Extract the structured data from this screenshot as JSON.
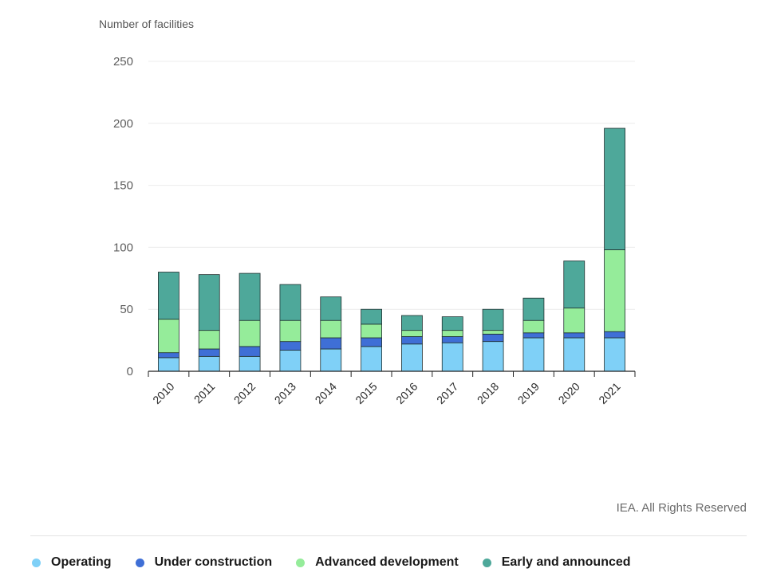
{
  "credit": "IEA. All Rights Reserved",
  "colors": {
    "Operating": "#7fd0f7",
    "Under construction": "#3f6fd6",
    "Advanced development": "#95ec9a",
    "Early and announced": "#4ea89a"
  },
  "chart_data": {
    "type": "bar",
    "stacked": true,
    "title": "",
    "xlabel": "",
    "ylabel": "Number of facilities",
    "ylim": [
      0,
      250
    ],
    "yticks": [
      0,
      50,
      100,
      150,
      200,
      250
    ],
    "grid": true,
    "legend_position": "bottom",
    "categories": [
      "2010",
      "2011",
      "2012",
      "2013",
      "2014",
      "2015",
      "2016",
      "2017",
      "2018",
      "2019",
      "2020",
      "2021"
    ],
    "series": [
      {
        "name": "Operating",
        "values": [
          11,
          12,
          12,
          17,
          18,
          20,
          22,
          23,
          24,
          27,
          27,
          27
        ]
      },
      {
        "name": "Under construction",
        "values": [
          4,
          6,
          8,
          7,
          9,
          7,
          6,
          5,
          6,
          4,
          4,
          5
        ]
      },
      {
        "name": "Advanced development",
        "values": [
          27,
          15,
          21,
          17,
          14,
          11,
          5,
          5,
          3,
          10,
          20,
          66
        ]
      },
      {
        "name": "Early and announced",
        "values": [
          38,
          45,
          38,
          29,
          19,
          12,
          12,
          11,
          17,
          18,
          38,
          98
        ]
      }
    ]
  }
}
